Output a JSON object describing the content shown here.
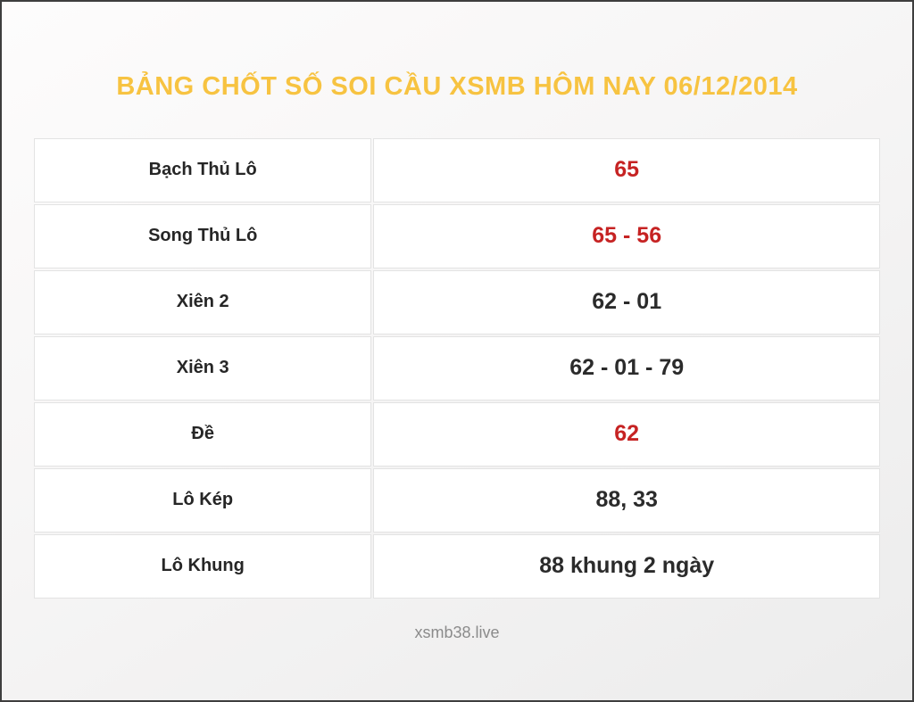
{
  "title": "BẢNG CHỐT SỐ SOI CẦU XSMB HÔM NAY 06/12/2014",
  "colors": {
    "title": "#f7c341",
    "highlight_value": "#c62323",
    "normal_value": "#2b2b2b",
    "label_text": "#262626",
    "footer_text": "#8b8b8b"
  },
  "rows": [
    {
      "label": "Bạch Thủ Lô",
      "value": "65",
      "value_color": "#c62323"
    },
    {
      "label": "Song Thủ Lô",
      "value": "65 - 56",
      "value_color": "#c62323"
    },
    {
      "label": "Xiên 2",
      "value": "62 - 01",
      "value_color": "#2b2b2b"
    },
    {
      "label": "Xiên 3",
      "value": "62 - 01 - 79",
      "value_color": "#2b2b2b"
    },
    {
      "label": "Đề",
      "value": "62",
      "value_color": "#c62323"
    },
    {
      "label": "Lô Kép",
      "value": "88, 33",
      "value_color": "#2b2b2b"
    },
    {
      "label": "Lô Khung",
      "value": "88 khung 2 ngày",
      "value_color": "#2b2b2b"
    }
  ],
  "footer": {
    "domain": "xsmb38.live"
  }
}
